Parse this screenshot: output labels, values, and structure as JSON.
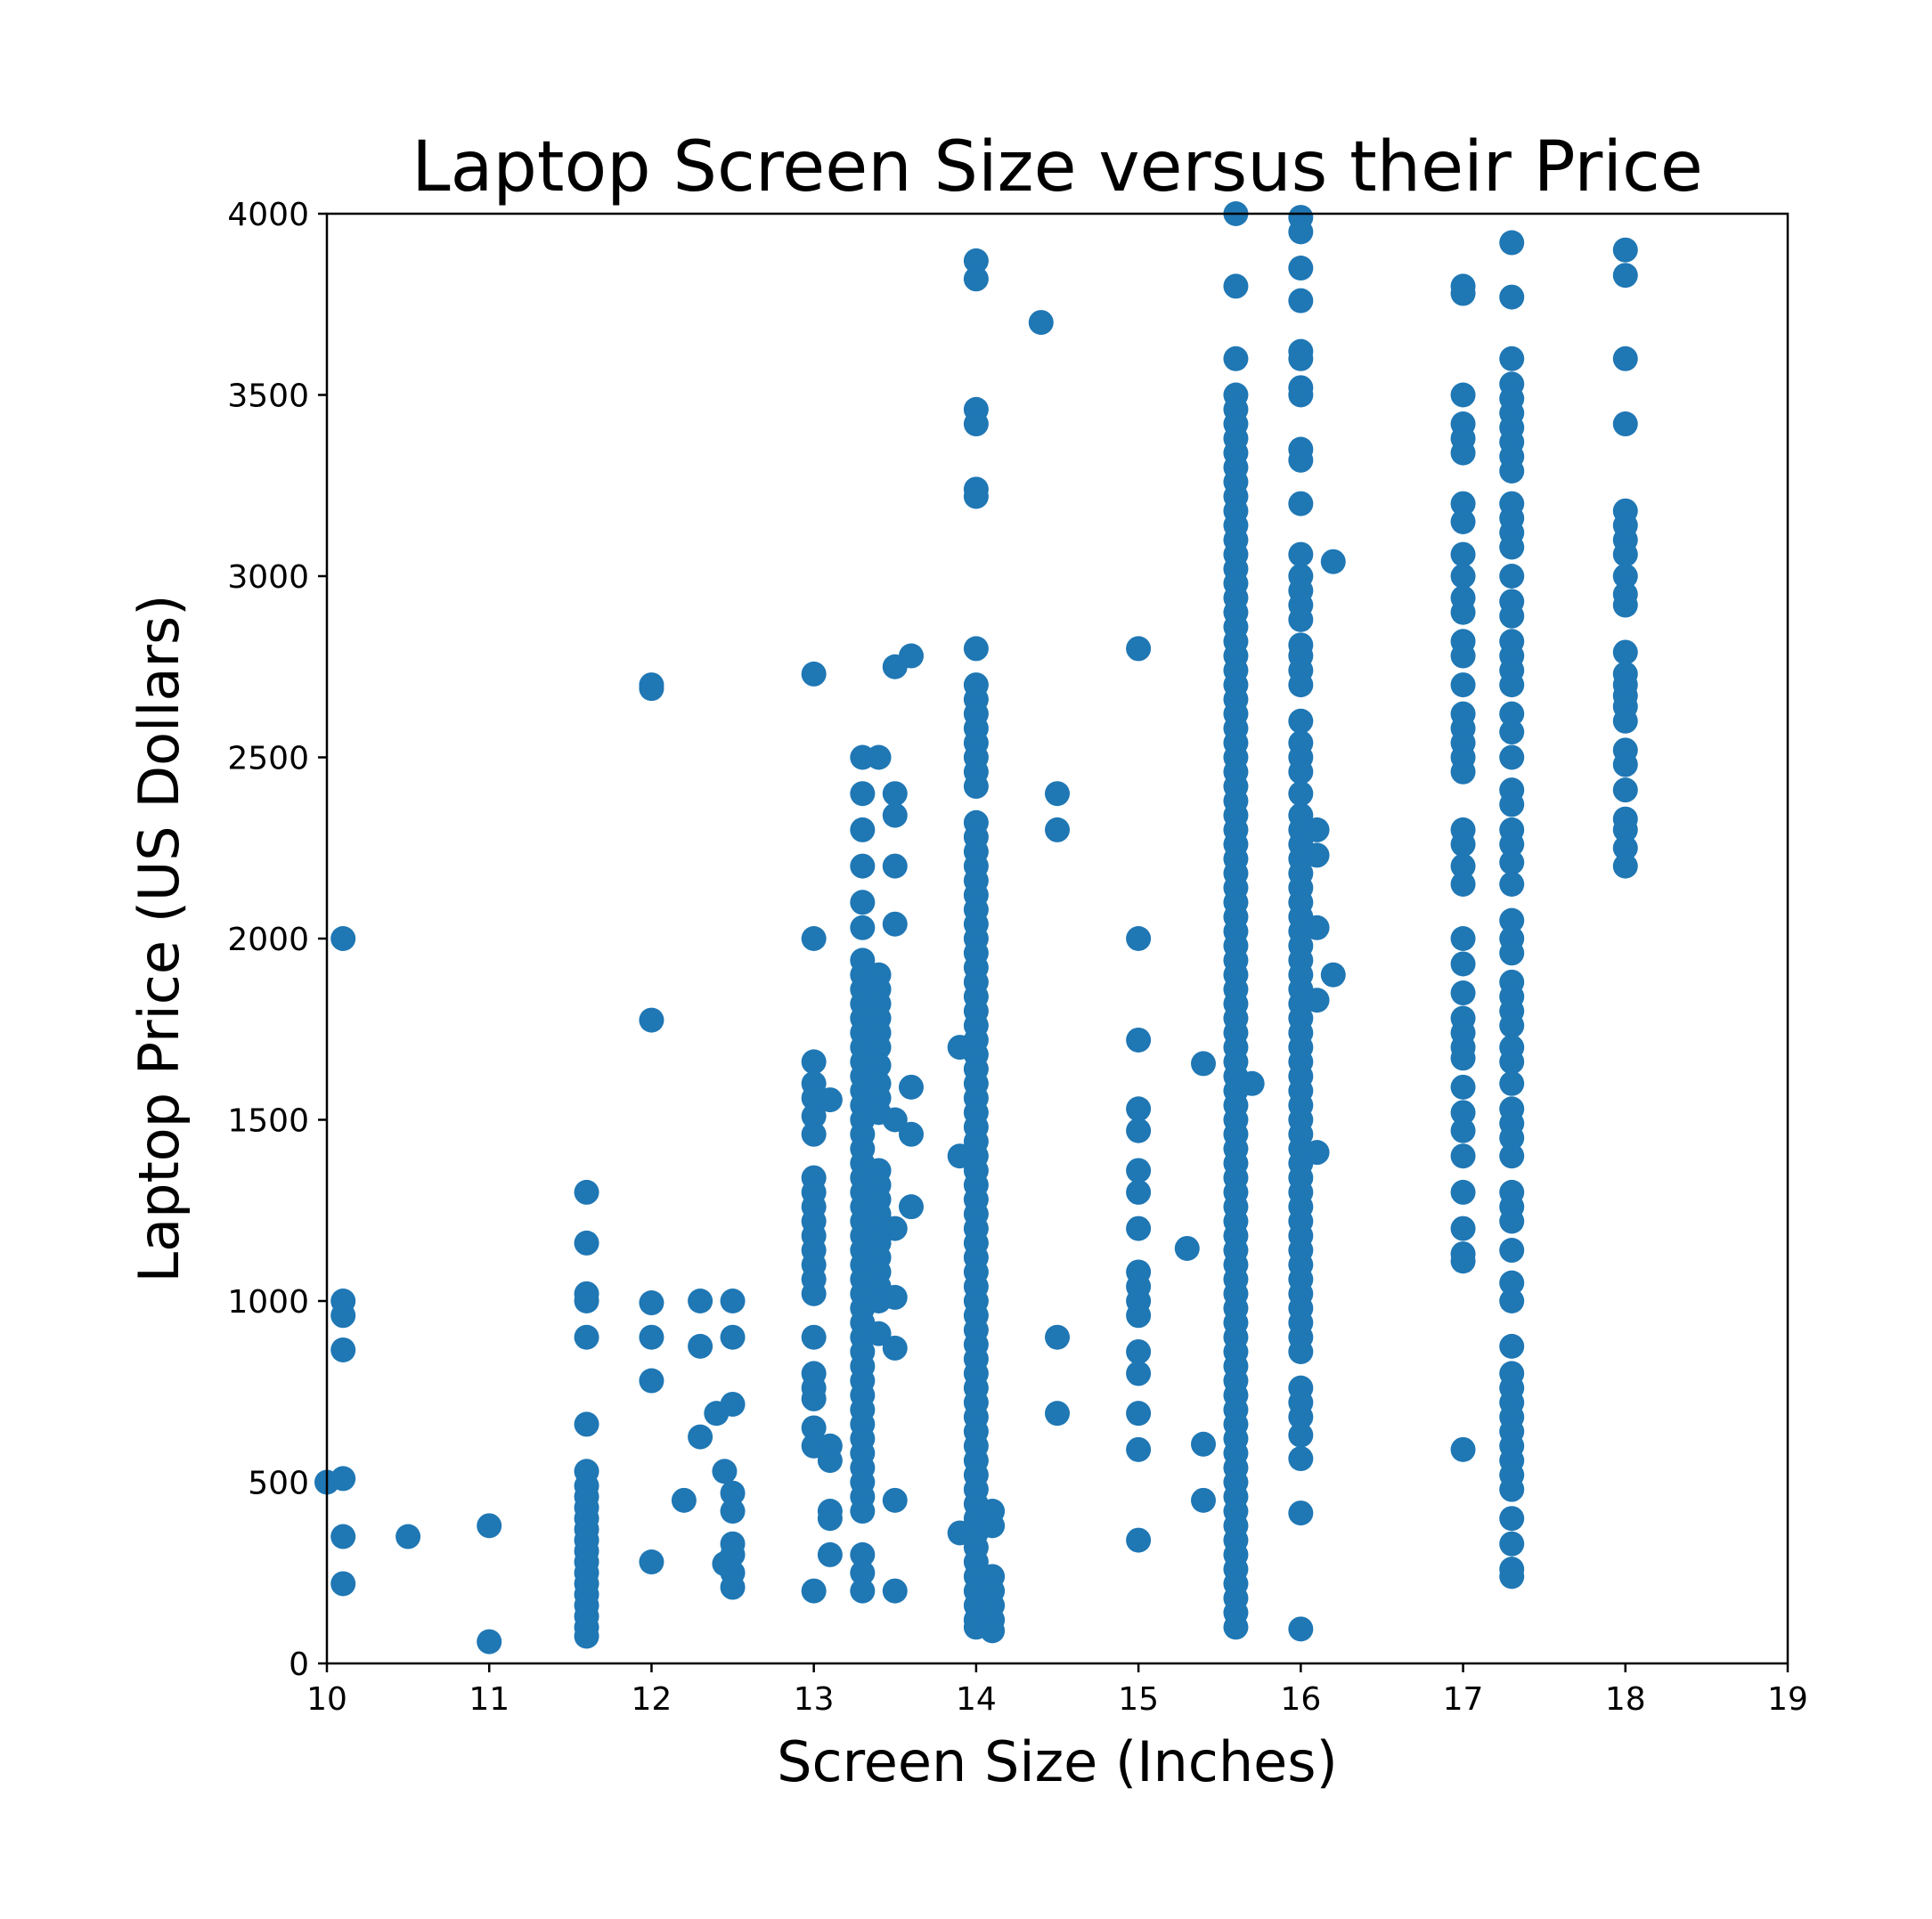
{
  "chart_data": {
    "type": "scatter",
    "title": "Laptop Screen Size versus their Price",
    "xlabel": "Screen Size (Inches)",
    "ylabel": "Laptop Price (US Dollars)",
    "xlim": [
      10,
      19
    ],
    "ylim": [
      0,
      4000
    ],
    "xticks": [
      "10",
      "11",
      "12",
      "13",
      "14",
      "15",
      "16",
      "17",
      "18",
      "19"
    ],
    "yticks": [
      "0",
      "500",
      "1000",
      "1500",
      "2000",
      "2500",
      "3000",
      "3500",
      "4000"
    ],
    "grid": false,
    "legend": "none",
    "color": "#1f77b4",
    "columns": [
      {
        "x": 10.0,
        "y": [
          500
        ]
      },
      {
        "x": 10.1,
        "y": [
          2000,
          1000,
          960,
          865,
          510,
          350,
          220
        ]
      },
      {
        "x": 10.5,
        "y": [
          350
        ]
      },
      {
        "x": 11.0,
        "y": [
          380,
          60
        ]
      },
      {
        "x": 11.6,
        "y": [
          1300,
          1160,
          1020,
          1000,
          900,
          660,
          530,
          490,
          460,
          430,
          400,
          370,
          340,
          310,
          280,
          250,
          220,
          190,
          160,
          130,
          100,
          75
        ]
      },
      {
        "x": 12.0,
        "y": [
          2700,
          2690,
          1775,
          995,
          900,
          780,
          280
        ]
      },
      {
        "x": 12.2,
        "y": [
          450
        ]
      },
      {
        "x": 12.3,
        "y": [
          1000,
          875,
          625
        ]
      },
      {
        "x": 12.4,
        "y": [
          690
        ]
      },
      {
        "x": 12.45,
        "y": [
          530,
          275
        ]
      },
      {
        "x": 12.5,
        "y": [
          1000,
          900,
          715,
          470,
          420,
          330,
          300,
          250,
          210
        ]
      },
      {
        "x": 13.0,
        "y": [
          2730,
          2000,
          1660,
          1600,
          1560,
          1510,
          1460,
          1340,
          1300,
          1260,
          1220,
          1180,
          1140,
          1100,
          1060,
          1020,
          900,
          800,
          760,
          730,
          650,
          600,
          200
        ]
      },
      {
        "x": 13.1,
        "y": [
          1555,
          600,
          560,
          420,
          400,
          300
        ]
      },
      {
        "x": 13.3,
        "y": [
          2500,
          2400,
          2300,
          2200,
          2100,
          2030,
          1940,
          1900,
          1860,
          1820,
          1780,
          1740,
          1700,
          1660,
          1620,
          1580,
          1540,
          1500,
          1460,
          1420,
          1380,
          1340,
          1300,
          1260,
          1220,
          1180,
          1140,
          1100,
          1060,
          1020,
          980,
          940,
          900,
          860,
          820,
          780,
          740,
          700,
          660,
          620,
          580,
          540,
          500,
          460,
          420,
          300,
          250,
          200
        ]
      },
      {
        "x": 13.4,
        "y": [
          2500,
          1900,
          1860,
          1820,
          1780,
          1740,
          1700,
          1650,
          1600,
          1560,
          1520,
          1360,
          1320,
          1280,
          1240,
          1200,
          1160,
          1120,
          1080,
          1040,
          1000,
          910
        ]
      },
      {
        "x": 13.5,
        "y": [
          2750,
          2400,
          2340,
          2200,
          2040,
          1500,
          1200,
          1010,
          870,
          450,
          200
        ]
      },
      {
        "x": 13.6,
        "y": [
          2780,
          1590,
          1460,
          1260
        ]
      },
      {
        "x": 13.9,
        "y": [
          1700,
          1400,
          360
        ]
      },
      {
        "x": 14.0,
        "y": [
          3870,
          3820,
          3460,
          3420,
          3240,
          3220,
          2800,
          2700,
          2660,
          2620,
          2580,
          2540,
          2500,
          2460,
          2420,
          2320,
          2280,
          2240,
          2200,
          2160,
          2120,
          2080,
          2040,
          2000,
          1960,
          1920,
          1880,
          1840,
          1800,
          1760,
          1720,
          1680,
          1640,
          1600,
          1560,
          1520,
          1480,
          1440,
          1400,
          1360,
          1320,
          1280,
          1240,
          1200,
          1160,
          1120,
          1080,
          1040,
          1000,
          960,
          920,
          880,
          840,
          800,
          760,
          720,
          680,
          640,
          600,
          560,
          520,
          480,
          440,
          400,
          360,
          320,
          280,
          240,
          200,
          160,
          120,
          100
        ]
      },
      {
        "x": 14.1,
        "y": [
          420,
          380,
          240,
          200,
          160,
          120,
          90
        ]
      },
      {
        "x": 14.4,
        "y": [
          3700
        ]
      },
      {
        "x": 14.5,
        "y": [
          2400,
          2300,
          900,
          690
        ]
      },
      {
        "x": 15.0,
        "y": [
          2800,
          2000,
          1720,
          1530,
          1470,
          1360,
          1300,
          1200,
          1080,
          1040,
          1000,
          960,
          860,
          800,
          690,
          590,
          340
        ]
      },
      {
        "x": 15.3,
        "y": [
          1145
        ]
      },
      {
        "x": 15.4,
        "y": [
          1655,
          605,
          450
        ]
      },
      {
        "x": 15.6,
        "y": [
          4000,
          3800,
          3600,
          3500,
          3460,
          3420,
          3380,
          3340,
          3300,
          3260,
          3220,
          3180,
          3140,
          3100,
          3060,
          3020,
          2980,
          2940,
          2900,
          2860,
          2820,
          2780,
          2740,
          2700,
          2660,
          2620,
          2580,
          2540,
          2500,
          2460,
          2420,
          2380,
          2340,
          2300,
          2260,
          2220,
          2180,
          2140,
          2100,
          2060,
          2020,
          1980,
          1940,
          1900,
          1860,
          1820,
          1780,
          1740,
          1700,
          1660,
          1620,
          1580,
          1540,
          1500,
          1460,
          1420,
          1380,
          1340,
          1300,
          1260,
          1220,
          1180,
          1140,
          1100,
          1060,
          1020,
          980,
          940,
          900,
          860,
          820,
          780,
          740,
          700,
          660,
          620,
          580,
          540,
          500,
          460,
          420,
          380,
          340,
          300,
          260,
          220,
          180,
          140,
          100
        ]
      },
      {
        "x": 15.7,
        "y": [
          1600
        ]
      },
      {
        "x": 16.0,
        "y": [
          3990,
          3950,
          3850,
          3760,
          3620,
          3600,
          3520,
          3500,
          3350,
          3320,
          3200,
          3060,
          3000,
          2960,
          2920,
          2880,
          2810,
          2780,
          2740,
          2700,
          2600,
          2540,
          2500,
          2460,
          2400,
          2340,
          2300,
          2260,
          2220,
          2180,
          2140,
          2100,
          2060,
          2020,
          1980,
          1940,
          1900,
          1860,
          1820,
          1780,
          1740,
          1700,
          1660,
          1620,
          1580,
          1540,
          1500,
          1460,
          1420,
          1380,
          1340,
          1300,
          1260,
          1220,
          1180,
          1140,
          1100,
          1060,
          1020,
          980,
          940,
          900,
          860,
          760,
          720,
          680,
          630,
          565,
          415,
          95
        ]
      },
      {
        "x": 16.1,
        "y": [
          2300,
          2230,
          2030,
          1830,
          1410
        ]
      },
      {
        "x": 16.2,
        "y": [
          3040,
          1900
        ]
      },
      {
        "x": 17.0,
        "y": [
          3800,
          3780,
          3500,
          3420,
          3380,
          3340,
          3200,
          3150,
          3060,
          3000,
          2940,
          2900,
          2820,
          2780,
          2700,
          2620,
          2580,
          2540,
          2500,
          2460,
          2300,
          2260,
          2200,
          2150,
          2000,
          1930,
          1850,
          1780,
          1740,
          1700,
          1670,
          1590,
          1520,
          1470,
          1400,
          1300,
          1200,
          1130,
          1110,
          590
        ]
      },
      {
        "x": 17.3,
        "y": [
          3920,
          3770,
          3600,
          3530,
          3490,
          3450,
          3410,
          3370,
          3330,
          3290,
          3200,
          3160,
          3120,
          3080,
          3000,
          2930,
          2890,
          2820,
          2780,
          2740,
          2700,
          2620,
          2570,
          2500,
          2410,
          2370,
          2300,
          2260,
          2210,
          2150,
          2050,
          2000,
          1960,
          1880,
          1840,
          1800,
          1760,
          1700,
          1660,
          1600,
          1530,
          1490,
          1450,
          1400,
          1300,
          1260,
          1220,
          1140,
          1050,
          1000,
          875,
          800,
          760,
          720,
          680,
          640,
          600,
          560,
          520,
          480,
          400,
          330,
          260,
          240
        ]
      },
      {
        "x": 18.0,
        "y": [
          3900,
          3830,
          3600,
          3420,
          3180,
          3140,
          3100,
          3060,
          3000,
          2950,
          2920,
          2790,
          2730,
          2700,
          2670,
          2640,
          2600,
          2520,
          2480,
          2410,
          2330,
          2300,
          2250,
          2200
        ]
      }
    ]
  }
}
